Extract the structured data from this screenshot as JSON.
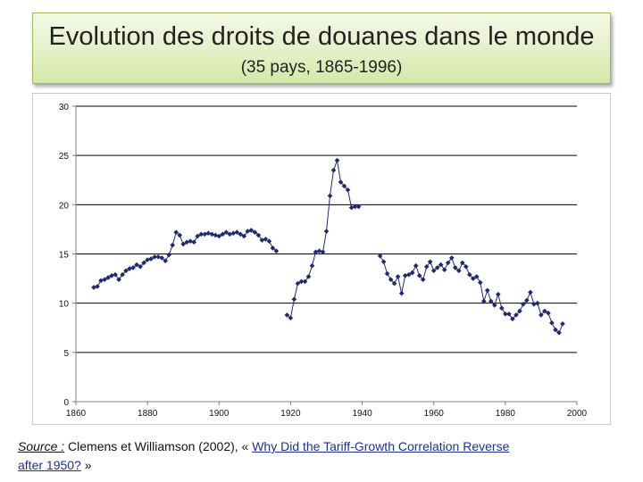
{
  "header": {
    "title": "Evolution des droits de douanes dans le monde",
    "subtitle": "(35 pays, 1865-1996)"
  },
  "footer": {
    "source_label": "Source :",
    "authors": "Clemens et Williamson (2002), «",
    "link_line1": "Why Did the Tariff-Growth Correlation Reverse",
    "link_line2": "after 1950?",
    "closing": "»"
  },
  "colors": {
    "series": "#1f2a6e",
    "grid": "#000000",
    "title_bg": "#e4f0c8"
  },
  "chart_data": {
    "type": "line",
    "title": "Evolution des droits de douanes dans le monde",
    "subtitle": "(35 pays, 1865-1996)",
    "xlabel": "",
    "ylabel": "",
    "xlim": [
      1860,
      2000
    ],
    "ylim": [
      0,
      30
    ],
    "xticks": [
      1860,
      1880,
      1900,
      1920,
      1940,
      1960,
      1980,
      2000
    ],
    "yticks": [
      0,
      5,
      10,
      15,
      20,
      25,
      30
    ],
    "grid": "horizontal",
    "legend": "none",
    "series": [
      {
        "x": [
          1865,
          1866,
          1867,
          1868,
          1869,
          1870,
          1871,
          1872,
          1873,
          1874,
          1875,
          1876,
          1877,
          1878,
          1879,
          1880,
          1881,
          1882,
          1883,
          1884,
          1885,
          1886,
          1887,
          1888,
          1889,
          1890,
          1891,
          1892,
          1893,
          1894,
          1895,
          1896,
          1897,
          1898,
          1899,
          1900,
          1901,
          1902,
          1903,
          1904,
          1905,
          1906,
          1907,
          1908,
          1909,
          1910,
          1911,
          1912,
          1913
        ],
        "values": [
          11.6,
          11.7,
          12.3,
          12.4,
          12.6,
          12.8,
          12.9,
          12.4,
          12.9,
          13.3,
          13.5,
          13.6,
          13.9,
          13.7,
          14.1,
          14.4,
          14.5,
          14.7,
          14.7,
          14.6,
          14.3,
          14.9,
          15.9,
          17.2,
          16.9,
          16.0,
          16.2,
          16.3,
          16.2,
          16.8,
          17.0,
          17.0,
          17.1,
          17.0,
          16.9,
          16.8,
          17.0,
          17.2,
          17.0,
          17.1,
          17.2,
          17.0,
          16.8,
          17.3,
          17.4,
          17.2,
          16.9,
          16.4,
          16.5
        ]
      },
      {
        "x": [
          1914,
          1915,
          1916
        ],
        "values": [
          16.3,
          15.6,
          15.3
        ]
      },
      {
        "x": [
          1919,
          1920,
          1921,
          1922,
          1923,
          1924,
          1925,
          1926,
          1927,
          1928,
          1929,
          1930,
          1931,
          1932,
          1933,
          1934,
          1935,
          1936,
          1937,
          1938,
          1939
        ],
        "values": [
          8.8,
          8.5,
          10.4,
          12.0,
          12.2,
          12.2,
          12.7,
          13.8,
          15.2,
          15.3,
          15.2,
          17.3,
          20.9,
          23.5,
          24.5,
          22.3,
          21.9,
          21.5,
          19.7,
          19.8,
          19.8
        ]
      },
      {
        "x": [
          1945,
          1946,
          1947,
          1948,
          1949,
          1950,
          1951,
          1952,
          1953,
          1954,
          1955,
          1956,
          1957,
          1958,
          1959,
          1960,
          1961,
          1962,
          1963,
          1964,
          1965,
          1966,
          1967,
          1968,
          1969,
          1970,
          1971,
          1972,
          1973,
          1974,
          1975,
          1976,
          1977,
          1978,
          1979,
          1980,
          1981,
          1982,
          1983,
          1984,
          1985,
          1986,
          1987,
          1988,
          1989,
          1990,
          1991,
          1992,
          1993,
          1994,
          1995,
          1996
        ],
        "values": [
          14.8,
          14.2,
          13.0,
          12.4,
          12.0,
          12.7,
          11.0,
          12.8,
          12.9,
          13.1,
          13.8,
          12.8,
          12.4,
          13.7,
          14.2,
          13.3,
          13.6,
          13.9,
          13.4,
          14.1,
          14.6,
          13.6,
          13.3,
          14.1,
          13.7,
          12.9,
          12.5,
          12.7,
          12.1,
          10.2,
          11.3,
          10.2,
          9.8,
          10.9,
          9.5,
          8.9,
          8.9,
          8.4,
          8.8,
          9.2,
          9.9,
          10.3,
          11.1,
          9.9,
          10.0,
          8.8,
          9.2,
          9.0,
          8.0,
          7.3,
          7.0,
          7.9
        ]
      }
    ]
  }
}
